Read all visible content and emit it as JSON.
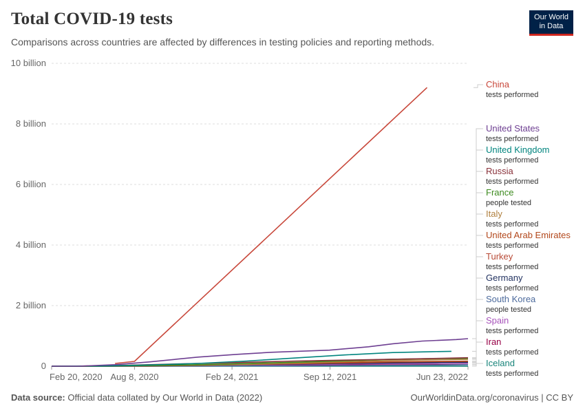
{
  "header": {
    "title": "Total COVID-19 tests",
    "subtitle": "Comparisons across countries are affected by differences in testing policies and reporting methods.",
    "logo_line1": "Our World",
    "logo_line2": "in Data"
  },
  "footer": {
    "source_label": "Data source:",
    "source_text": "Official data collated by Our World in Data (2022)",
    "link_text": "OurWorldinData.org/coronavirus",
    "license": "| CC BY"
  },
  "chart_data": {
    "type": "line",
    "title": "Total COVID-19 tests",
    "xlabel": "",
    "ylabel": "",
    "x_domain": [
      0,
      854
    ],
    "ylim": [
      0,
      10000000000
    ],
    "y_ticks": [
      {
        "value": 0,
        "label": "0"
      },
      {
        "value": 2000000000,
        "label": "2 billion"
      },
      {
        "value": 4000000000,
        "label": "4 billion"
      },
      {
        "value": 6000000000,
        "label": "6 billion"
      },
      {
        "value": 8000000000,
        "label": "8 billion"
      },
      {
        "value": 10000000000,
        "label": "10 billion"
      }
    ],
    "x_ticks": [
      {
        "day": 0,
        "label": "Feb 20, 2020"
      },
      {
        "day": 170,
        "label": "Aug 8, 2020"
      },
      {
        "day": 370,
        "label": "Feb 24, 2021"
      },
      {
        "day": 571,
        "label": "Sep 12, 2021"
      },
      {
        "day": 854,
        "label": "Jun 23, 2022"
      }
    ],
    "series": [
      {
        "name": "China",
        "metric": "tests performed",
        "color": "#c8473a",
        "points": [
          [
            130,
            90000000
          ],
          [
            170,
            160000000
          ],
          [
            770,
            9200000000
          ]
        ]
      },
      {
        "name": "United States",
        "metric": "tests performed",
        "color": "#6d3e91",
        "points": [
          [
            0,
            0
          ],
          [
            60,
            3000000
          ],
          [
            130,
            50000000
          ],
          [
            200,
            140000000
          ],
          [
            300,
            300000000
          ],
          [
            380,
            390000000
          ],
          [
            450,
            460000000
          ],
          [
            570,
            530000000
          ],
          [
            650,
            640000000
          ],
          [
            700,
            740000000
          ],
          [
            760,
            830000000
          ],
          [
            830,
            880000000
          ],
          [
            854,
            910000000
          ]
        ]
      },
      {
        "name": "United Kingdom",
        "metric": "tests performed",
        "color": "#00847e",
        "points": [
          [
            0,
            0
          ],
          [
            100,
            5000000
          ],
          [
            200,
            40000000
          ],
          [
            300,
            90000000
          ],
          [
            400,
            170000000
          ],
          [
            500,
            270000000
          ],
          [
            600,
            370000000
          ],
          [
            700,
            450000000
          ],
          [
            780,
            480000000
          ],
          [
            820,
            490000000
          ]
        ]
      },
      {
        "name": "Russia",
        "metric": "tests performed",
        "color": "#883039",
        "points": [
          [
            0,
            0
          ],
          [
            100,
            10000000
          ],
          [
            200,
            50000000
          ],
          [
            300,
            90000000
          ],
          [
            400,
            130000000
          ],
          [
            500,
            170000000
          ],
          [
            600,
            200000000
          ],
          [
            700,
            230000000
          ],
          [
            800,
            260000000
          ],
          [
            854,
            280000000
          ]
        ]
      },
      {
        "name": "France",
        "metric": "people tested",
        "color": "#3c8a1e",
        "points": [
          [
            0,
            0
          ],
          [
            100,
            2000000
          ],
          [
            200,
            20000000
          ],
          [
            300,
            50000000
          ],
          [
            400,
            90000000
          ],
          [
            500,
            130000000
          ],
          [
            600,
            180000000
          ],
          [
            700,
            230000000
          ],
          [
            780,
            250000000
          ],
          [
            854,
            260000000
          ]
        ]
      },
      {
        "name": "Italy",
        "metric": "tests performed",
        "color": "#b0803f",
        "points": [
          [
            0,
            0
          ],
          [
            100,
            5000000
          ],
          [
            200,
            20000000
          ],
          [
            300,
            40000000
          ],
          [
            400,
            60000000
          ],
          [
            500,
            100000000
          ],
          [
            600,
            150000000
          ],
          [
            700,
            190000000
          ],
          [
            800,
            215000000
          ],
          [
            854,
            225000000
          ]
        ]
      },
      {
        "name": "United Arab Emirates",
        "metric": "tests performed",
        "color": "#b2471b",
        "points": [
          [
            0,
            0
          ],
          [
            100,
            3000000
          ],
          [
            200,
            10000000
          ],
          [
            300,
            30000000
          ],
          [
            400,
            60000000
          ],
          [
            500,
            90000000
          ],
          [
            600,
            120000000
          ],
          [
            700,
            145000000
          ],
          [
            800,
            160000000
          ],
          [
            854,
            165000000
          ]
        ]
      },
      {
        "name": "Turkey",
        "metric": "tests performed",
        "color": "#b84a36",
        "points": [
          [
            0,
            0
          ],
          [
            100,
            4000000
          ],
          [
            200,
            15000000
          ],
          [
            300,
            30000000
          ],
          [
            400,
            55000000
          ],
          [
            500,
            80000000
          ],
          [
            600,
            110000000
          ],
          [
            700,
            140000000
          ],
          [
            800,
            155000000
          ],
          [
            854,
            162000000
          ]
        ]
      },
      {
        "name": "Germany",
        "metric": "tests performed",
        "color": "#1f2f5e",
        "points": [
          [
            0,
            0
          ],
          [
            100,
            5000000
          ],
          [
            200,
            15000000
          ],
          [
            300,
            35000000
          ],
          [
            400,
            55000000
          ],
          [
            500,
            70000000
          ],
          [
            600,
            90000000
          ],
          [
            700,
            110000000
          ],
          [
            800,
            125000000
          ],
          [
            854,
            130000000
          ]
        ]
      },
      {
        "name": "South Korea",
        "metric": "people tested",
        "color": "#4c6a9c",
        "points": [
          [
            0,
            0
          ],
          [
            100,
            1000000
          ],
          [
            200,
            2000000
          ],
          [
            300,
            5000000
          ],
          [
            400,
            8000000
          ],
          [
            500,
            12000000
          ],
          [
            600,
            20000000
          ],
          [
            700,
            30000000
          ],
          [
            800,
            40000000
          ],
          [
            854,
            50000000
          ]
        ]
      },
      {
        "name": "Spain",
        "metric": "tests performed",
        "color": "#a652ba",
        "points": [
          [
            0,
            0
          ],
          [
            100,
            3000000
          ],
          [
            200,
            10000000
          ],
          [
            300,
            25000000
          ],
          [
            400,
            40000000
          ],
          [
            500,
            55000000
          ],
          [
            600,
            70000000
          ],
          [
            700,
            85000000
          ],
          [
            800,
            92000000
          ],
          [
            854,
            95000000
          ]
        ]
      },
      {
        "name": "Iran",
        "metric": "tests performed",
        "color": "#970046",
        "points": [
          [
            0,
            0
          ],
          [
            100,
            1000000
          ],
          [
            200,
            4000000
          ],
          [
            300,
            10000000
          ],
          [
            400,
            20000000
          ],
          [
            500,
            30000000
          ],
          [
            600,
            38000000
          ],
          [
            700,
            45000000
          ],
          [
            800,
            50000000
          ],
          [
            854,
            52000000
          ]
        ]
      },
      {
        "name": "Iceland",
        "metric": "tests performed",
        "color": "#18847a",
        "points": [
          [
            0,
            0
          ],
          [
            200,
            300000
          ],
          [
            400,
            700000
          ],
          [
            600,
            1200000
          ],
          [
            854,
            1900000
          ]
        ]
      }
    ]
  }
}
